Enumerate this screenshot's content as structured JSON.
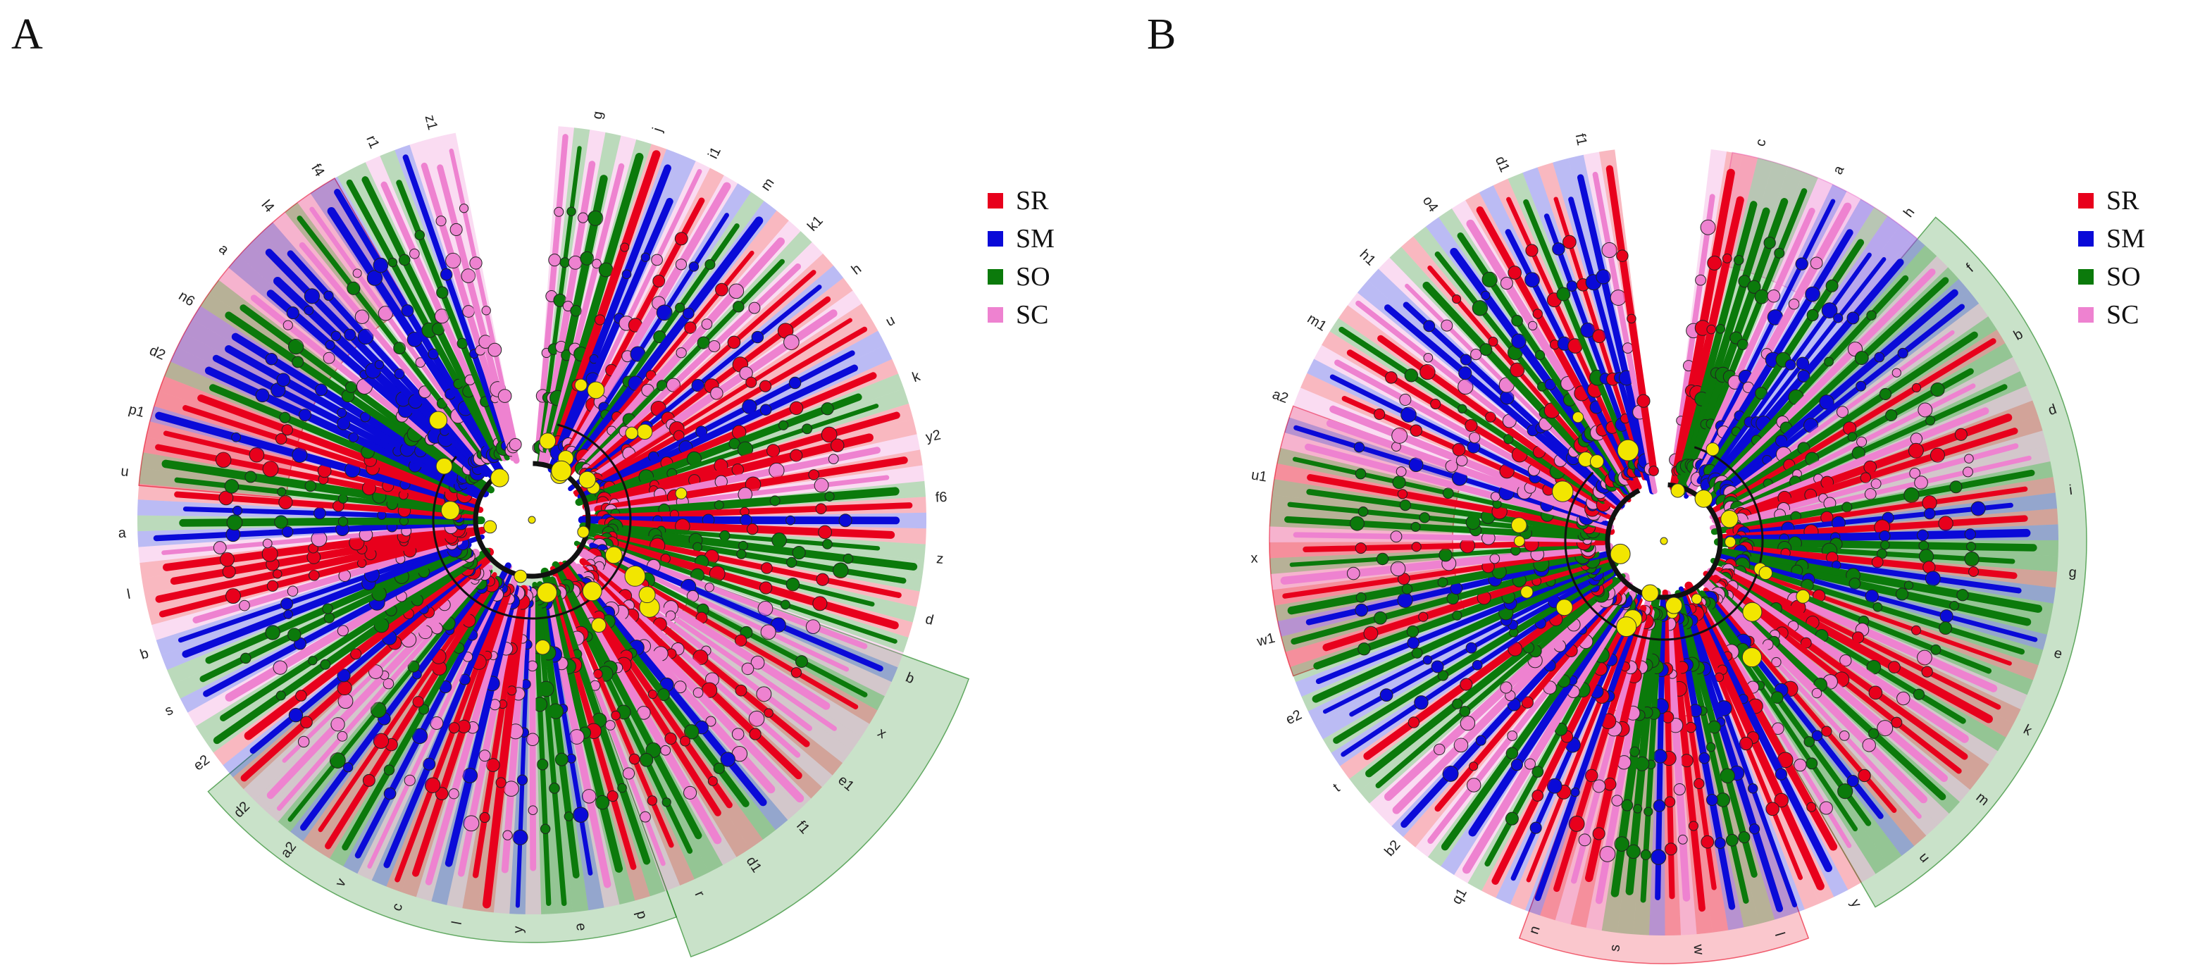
{
  "panels": [
    {
      "letter": "A",
      "legend": [
        {
          "label": "SR",
          "color": "#e8001c"
        },
        {
          "label": "SM",
          "color": "#0a0ad8"
        },
        {
          "label": "SO",
          "color": "#0b7a0b"
        },
        {
          "label": "SC",
          "color": "#ee82d0"
        }
      ],
      "outer_labels": [
        "g",
        "j",
        "i1",
        "m",
        "k1",
        "h",
        "u",
        "k",
        "y2",
        "f6",
        "z",
        "d",
        "b",
        "x",
        "e1",
        "f1",
        "d1",
        "r",
        "p",
        "e",
        "y",
        "l",
        "c",
        "v",
        "a2",
        "d2",
        "e2",
        "s",
        "b",
        "l",
        "a",
        "u",
        "p1",
        "d2",
        "n6",
        "a",
        "l4",
        "f4",
        "r1",
        "z1"
      ]
    },
    {
      "letter": "B",
      "legend": [
        {
          "label": "SR",
          "color": "#e8001c"
        },
        {
          "label": "SM",
          "color": "#0a0ad8"
        },
        {
          "label": "SO",
          "color": "#0b7a0b"
        },
        {
          "label": "SC",
          "color": "#ee82d0"
        }
      ],
      "outer_labels": [
        "c",
        "a",
        "h",
        "f",
        "b",
        "d",
        "i",
        "g",
        "e",
        "k",
        "m",
        "u",
        "y",
        "l",
        "w",
        "s",
        "n",
        "q1",
        "b2",
        "t",
        "e2",
        "w1",
        "x",
        "u1",
        "a2",
        "m1",
        "h1",
        "o4",
        "d1",
        "f1"
      ]
    }
  ],
  "colors": {
    "SR": "#e8001c",
    "SM": "#0a0ad8",
    "SO": "#0b7a0b",
    "SC": "#ee82d0",
    "node": "#f2e600",
    "edge": "#111111"
  }
}
